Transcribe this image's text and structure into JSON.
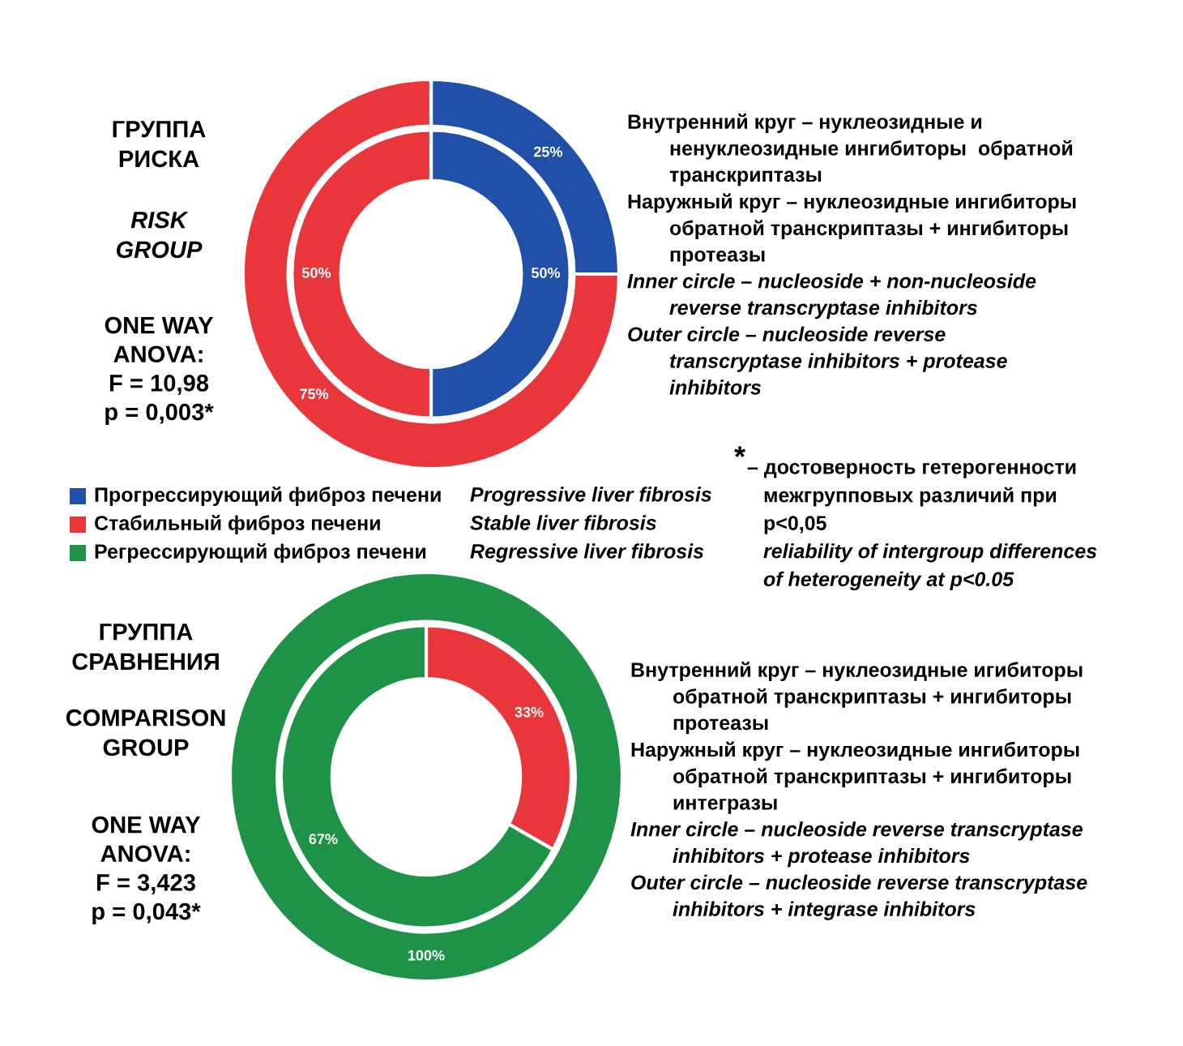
{
  "chart_data": [
    {
      "type": "donut",
      "title": "ГРУППА\nРИСКА",
      "subtitle": "RISK\nGROUP",
      "categories": [
        "Прогрессирующий фиброз печени",
        "Стабильный фиброз печени",
        "Регрессирующий фиброз печени"
      ],
      "colors": [
        "#2150a8",
        "#e8363a",
        "#1e9347"
      ],
      "series": [
        {
          "values": [
            25,
            75,
            0
          ],
          "value_labels": [
            "25%",
            "75%",
            null
          ]
        },
        {
          "values": [
            50,
            50,
            0
          ],
          "value_labels": [
            "50%",
            "50%",
            null
          ]
        }
      ],
      "legend": "bottom",
      "annotations": [
        "ONE WAY\nANOVA:\nF = 10,98\np = 0,003*",
        "Внутренний круг – нуклеозидные и\nненуклеозидные ингибиторы  обратной\nтранскриптазы",
        "Наружный круг – нуклеозидные ингибиторы\nобратной транскриптазы + ингибиторы\nпротеазы",
        "Inner circle – nucleoside + non-nucleoside\nreverse transcryptase inhibitors",
        "Outer circle – nucleoside reverse\ntranscryptase inhibitors + protease\ninhibitors",
        "* – достоверность гетерогенности\nмежгрупповых различий при\np<0,05",
        "reliability of intergroup differences\nof heterogeneity at p<0.05",
        "Progressive liver fibrosis",
        "Stable liver fibrosis",
        "Regressive liver fibrosis"
      ]
    },
    {
      "type": "donut",
      "title": "ГРУППА\nСРАВНЕНИЯ",
      "subtitle": "COMPARISON\nGROUP",
      "colors": [
        "#2150a8",
        "#e8363a",
        "#1e9347"
      ],
      "series": [
        {
          "values": [
            0,
            0,
            100
          ],
          "value_labels": [
            null,
            null,
            "100%"
          ]
        },
        {
          "values": [
            0,
            33,
            67
          ],
          "value_labels": [
            null,
            "33%",
            "67%"
          ]
        }
      ],
      "annotations": [
        "ONE WAY\nANOVA:\nF = 3,423\np = 0,043*",
        "Внутренний круг – нуклеозидные игибиторы\nобратной транскриптазы + ингибиторы\nпротеазы",
        "Наружный круг – нуклеозидные ингибиторы\nобратной транскриптазы + ингибиторы\nинтегразы",
        "Inner circle – nucleoside reverse transcryptase\ninhibitors + protease inhibitors",
        "Outer circle – nucleoside reverse transcryptase\ninhibitors + integrase inhibitors"
      ]
    }
  ]
}
